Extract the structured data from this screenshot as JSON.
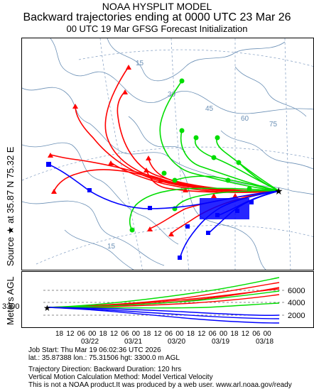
{
  "header": {
    "model": "NOAA HYSPLIT MODEL",
    "title": "Backward trajectories ending at 0000 UTC 23 Mar 26",
    "subtitle": "00 UTC 19 Mar    GFSG  Forecast Initialization"
  },
  "source_label": "Source ★ at   35.87 N   75.32 E",
  "map": {
    "lat_labels": [
      "15",
      "30",
      "45",
      "60",
      "75",
      "15"
    ],
    "source_marker": "star",
    "colors": {
      "red": "#ff0000",
      "blue": "#0000ff",
      "green": "#00dd00",
      "map_lines": "#6a8fb5"
    }
  },
  "vertical": {
    "ylabel": "Meters AGL",
    "start_height": "3300",
    "ticks": [
      "6000",
      "4000",
      "2000"
    ],
    "hour_ticks": [
      "18",
      "12",
      "06",
      "00",
      "18",
      "12",
      "06",
      "00",
      "18",
      "12",
      "06",
      "00",
      "18",
      "12",
      "06",
      "00",
      "18",
      "12",
      "06",
      "00"
    ],
    "dates": [
      "03/22",
      "03/21",
      "03/20",
      "03/19",
      "03/18"
    ]
  },
  "footer": {
    "job_start": "Job Start: Thu Mar 19 06:02:36 UTC 2026",
    "location": "lat.: 35.87388   lon.: 75.31506   hgt: 3300.0 m AGL",
    "direction": "Trajectory Direction: Backward        Duration: 120 hrs",
    "vertical_method": "Vertical Motion Calculation Method: Model Vertical Velocity",
    "disclaimer": "This is not a NOAA product.It was produced by a web user. www.arl.noaa.gov/ready"
  }
}
